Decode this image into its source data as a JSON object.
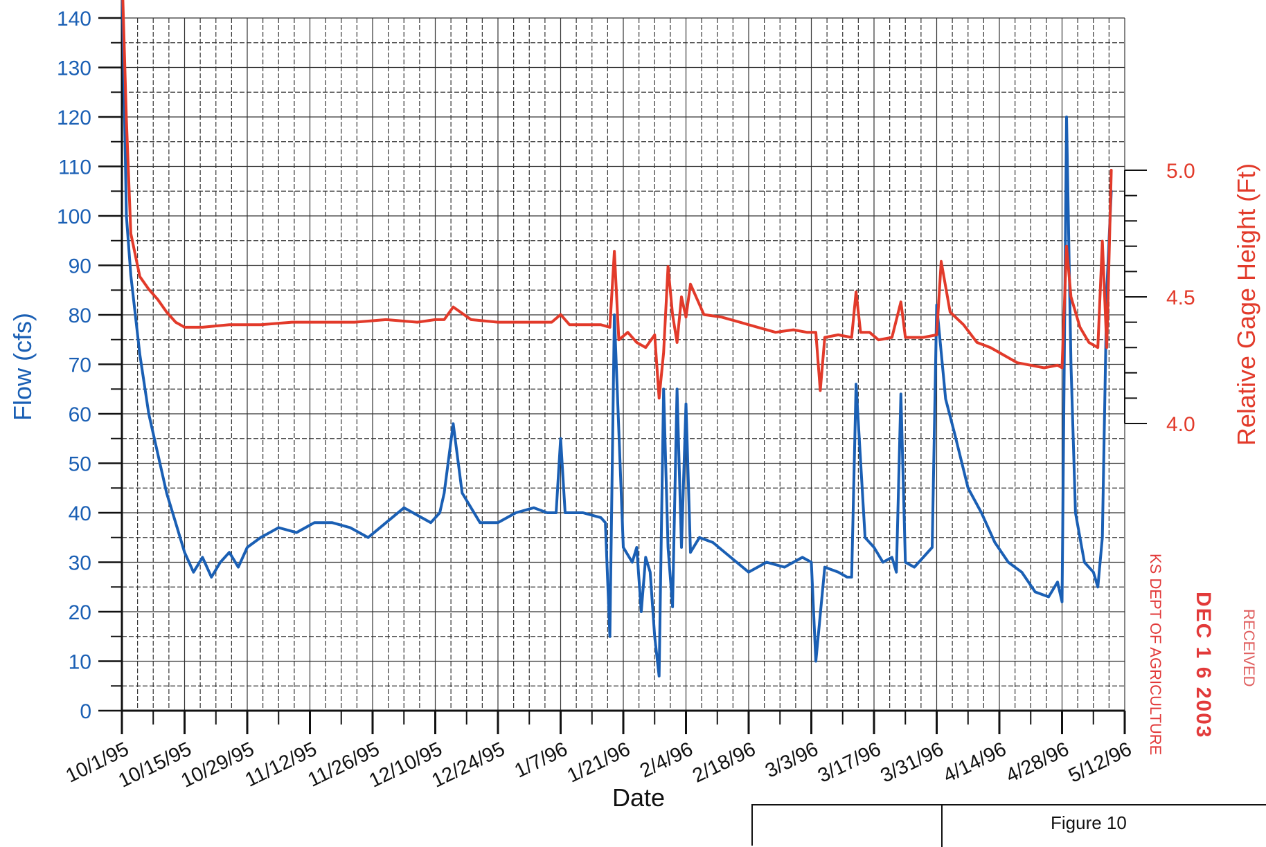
{
  "chart_data": {
    "type": "line",
    "xlabel": "Date",
    "ylabel": "Flow (cfs)",
    "y2label": "Relative Gage Height (Ft)",
    "x_ticks": [
      "10/1/95",
      "10/15/95",
      "10/29/95",
      "11/12/95",
      "11/26/95",
      "12/10/95",
      "12/24/95",
      "1/7/96",
      "1/21/96",
      "2/4/96",
      "2/18/96",
      "3/3/96",
      "3/17/96",
      "3/31/96",
      "4/14/96",
      "4/28/96",
      "5/12/96"
    ],
    "ylim": [
      0,
      140
    ],
    "y_ticks": [
      0,
      10,
      20,
      30,
      40,
      50,
      60,
      70,
      80,
      90,
      100,
      110,
      120,
      130,
      140
    ],
    "y2lim": [
      4.0,
      5.0
    ],
    "y2_ticks": [
      "4.0",
      "4.5",
      "5.0"
    ],
    "grid": true,
    "series": [
      {
        "name": "Flow (cfs)",
        "axis": "left",
        "color": "#1a5fb4",
        "x": [
          "1995-10-01",
          "1995-10-02",
          "1995-10-03",
          "1995-10-05",
          "1995-10-07",
          "1995-10-09",
          "1995-10-11",
          "1995-10-13",
          "1995-10-15",
          "1995-10-17",
          "1995-10-19",
          "1995-10-21",
          "1995-10-23",
          "1995-10-25",
          "1995-10-27",
          "1995-10-29",
          "1995-11-01",
          "1995-11-05",
          "1995-11-09",
          "1995-11-13",
          "1995-11-17",
          "1995-11-21",
          "1995-11-25",
          "1995-11-29",
          "1995-12-03",
          "1995-12-07",
          "1995-12-09",
          "1995-12-11",
          "1995-12-12",
          "1995-12-14",
          "1995-12-16",
          "1995-12-20",
          "1995-12-24",
          "1995-12-28",
          "1996-01-01",
          "1996-01-04",
          "1996-01-06",
          "1996-01-07",
          "1996-01-08",
          "1996-01-12",
          "1996-01-16",
          "1996-01-17",
          "1996-01-18",
          "1996-01-19",
          "1996-01-21",
          "1996-01-23",
          "1996-01-24",
          "1996-01-25",
          "1996-01-26",
          "1996-01-27",
          "1996-01-28",
          "1996-01-29",
          "1996-01-30",
          "1996-01-31",
          "1996-02-01",
          "1996-02-02",
          "1996-02-03",
          "1996-02-04",
          "1996-02-05",
          "1996-02-07",
          "1996-02-10",
          "1996-02-14",
          "1996-02-18",
          "1996-02-22",
          "1996-02-26",
          "1996-03-01",
          "1996-03-03",
          "1996-03-04",
          "1996-03-06",
          "1996-03-09",
          "1996-03-11",
          "1996-03-12",
          "1996-03-13",
          "1996-03-15",
          "1996-03-17",
          "1996-03-19",
          "1996-03-21",
          "1996-03-22",
          "1996-03-23",
          "1996-03-24",
          "1996-03-26",
          "1996-03-28",
          "1996-03-30",
          "1996-03-31",
          "1996-04-02",
          "1996-04-04",
          "1996-04-07",
          "1996-04-10",
          "1996-04-13",
          "1996-04-16",
          "1996-04-19",
          "1996-04-22",
          "1996-04-25",
          "1996-04-27",
          "1996-04-28",
          "1996-04-29",
          "1996-04-30",
          "1996-05-01",
          "1996-05-03",
          "1996-05-05",
          "1996-05-06",
          "1996-05-07",
          "1996-05-08",
          "1996-05-09"
        ],
        "values": [
          150,
          100,
          88,
          72,
          60,
          52,
          44,
          38,
          32,
          28,
          31,
          27,
          30,
          32,
          29,
          33,
          35,
          37,
          36,
          38,
          38,
          37,
          35,
          38,
          41,
          39,
          38,
          40,
          44,
          58,
          44,
          38,
          38,
          40,
          41,
          40,
          40,
          55,
          40,
          40,
          39,
          38,
          15,
          80,
          33,
          30,
          33,
          20,
          31,
          28,
          15,
          7,
          65,
          33,
          21,
          65,
          33,
          62,
          32,
          35,
          34,
          31,
          28,
          30,
          29,
          31,
          30,
          10,
          29,
          28,
          27,
          27,
          66,
          35,
          33,
          30,
          31,
          28,
          64,
          30,
          29,
          31,
          33,
          82,
          63,
          56,
          45,
          40,
          34,
          30,
          28,
          24,
          23,
          26,
          22,
          120,
          70,
          40,
          30,
          28,
          25,
          35,
          85,
          105
        ]
      },
      {
        "name": "Relative Gage Height (Ft)",
        "axis": "right",
        "color": "#e23a2a",
        "x": [
          "1995-10-01",
          "1995-10-02",
          "1995-10-03",
          "1995-10-05",
          "1995-10-07",
          "1995-10-09",
          "1995-10-11",
          "1995-10-13",
          "1995-10-15",
          "1995-10-19",
          "1995-10-25",
          "1995-11-01",
          "1995-11-08",
          "1995-11-15",
          "1995-11-22",
          "1995-11-29",
          "1995-12-06",
          "1995-12-10",
          "1995-12-12",
          "1995-12-14",
          "1995-12-18",
          "1995-12-24",
          "1995-12-30",
          "1996-01-05",
          "1996-01-07",
          "1996-01-09",
          "1996-01-16",
          "1996-01-18",
          "1996-01-19",
          "1996-01-20",
          "1996-01-22",
          "1996-01-24",
          "1996-01-26",
          "1996-01-28",
          "1996-01-29",
          "1996-01-30",
          "1996-01-31",
          "1996-02-01",
          "1996-02-02",
          "1996-02-03",
          "1996-02-04",
          "1996-02-05",
          "1996-02-08",
          "1996-02-12",
          "1996-02-16",
          "1996-02-20",
          "1996-02-24",
          "1996-02-28",
          "1996-03-02",
          "1996-03-04",
          "1996-03-05",
          "1996-03-06",
          "1996-03-09",
          "1996-03-12",
          "1996-03-13",
          "1996-03-14",
          "1996-03-16",
          "1996-03-18",
          "1996-03-21",
          "1996-03-23",
          "1996-03-24",
          "1996-03-25",
          "1996-03-28",
          "1996-03-31",
          "1996-04-01",
          "1996-04-03",
          "1996-04-06",
          "1996-04-09",
          "1996-04-12",
          "1996-04-15",
          "1996-04-18",
          "1996-04-21",
          "1996-04-24",
          "1996-04-27",
          "1996-04-28",
          "1996-04-29",
          "1996-04-30",
          "1996-05-02",
          "1996-05-04",
          "1996-05-06",
          "1996-05-07",
          "1996-05-08",
          "1996-05-09"
        ],
        "values": [
          5.8,
          5.2,
          4.75,
          4.58,
          4.53,
          4.49,
          4.44,
          4.4,
          4.38,
          4.38,
          4.39,
          4.39,
          4.4,
          4.4,
          4.4,
          4.41,
          4.4,
          4.41,
          4.41,
          4.46,
          4.41,
          4.4,
          4.4,
          4.4,
          4.43,
          4.39,
          4.39,
          4.38,
          4.68,
          4.33,
          4.36,
          4.32,
          4.3,
          4.35,
          4.1,
          4.28,
          4.62,
          4.43,
          4.32,
          4.5,
          4.42,
          4.55,
          4.43,
          4.42,
          4.4,
          4.38,
          4.36,
          4.37,
          4.36,
          4.36,
          4.13,
          4.34,
          4.35,
          4.34,
          4.52,
          4.36,
          4.36,
          4.33,
          4.34,
          4.48,
          4.34,
          4.34,
          4.34,
          4.35,
          4.64,
          4.44,
          4.39,
          4.32,
          4.3,
          4.27,
          4.24,
          4.23,
          4.22,
          4.23,
          4.22,
          4.7,
          4.5,
          4.38,
          4.32,
          4.3,
          4.72,
          4.3,
          5.0
        ]
      }
    ]
  },
  "annotations": {
    "stamp_agency": "KS DEPT OF AGRICULTURE",
    "stamp_date": "DEC 1 6 2003",
    "stamp_received": "RECEIVED",
    "figure_label": "Figure 10"
  },
  "colors": {
    "flow": "#1a5fb4",
    "gage": "#e23a2a",
    "grid": "#333333"
  }
}
